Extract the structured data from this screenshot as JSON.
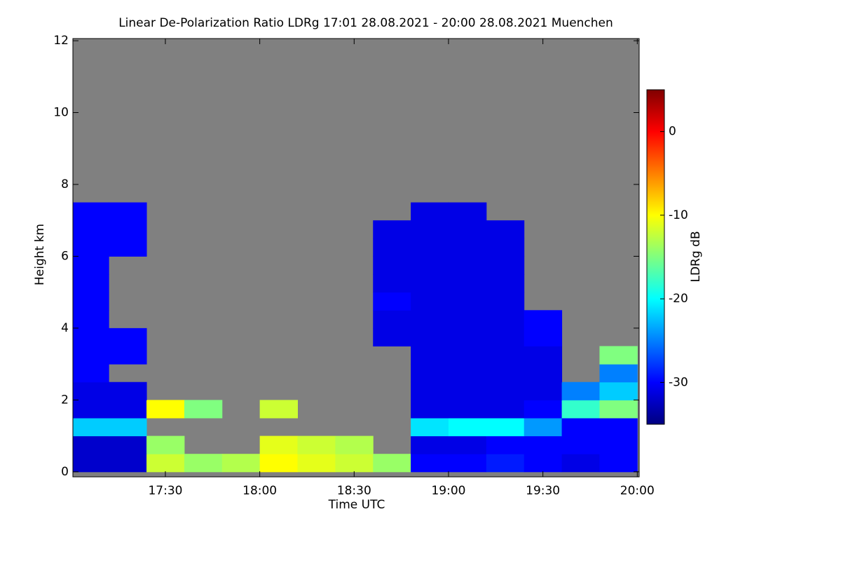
{
  "chart_data": {
    "type": "heatmap",
    "title": "Linear De-Polarization Ratio LDRg   17:01 28.08.2021 - 20:00 28.08.2021 Muenchen",
    "xlabel": "Time UTC",
    "ylabel": "Height km",
    "colorbar_label": "LDRg dB",
    "colormap": "jet",
    "nan_color": "#808080",
    "xlim": [
      17.01,
      20.01
    ],
    "xticks": [
      {
        "value": 17.5,
        "label": "17:30"
      },
      {
        "value": 18,
        "label": "18:00"
      },
      {
        "value": 18.5,
        "label": "18:30"
      },
      {
        "value": 19,
        "label": "19:00"
      },
      {
        "value": 19.5,
        "label": "19:30"
      },
      {
        "value": 20,
        "label": "20:00"
      }
    ],
    "ylim": [
      -0.14,
      12.06
    ],
    "yticks": [
      0,
      2,
      4,
      6,
      8,
      10,
      12
    ],
    "clim": [
      -35,
      5
    ],
    "cticks": [
      0,
      -10,
      -20,
      -30
    ],
    "x": [
      17.1,
      17.3,
      17.5,
      17.7,
      17.9,
      18.1,
      18.3,
      18.5,
      18.7,
      18.9,
      19.1,
      19.3,
      19.5,
      19.7,
      19.9
    ],
    "y": [
      0.25,
      0.75,
      1.25,
      1.75,
      2.25,
      2.75,
      3.25,
      3.75,
      4.25,
      4.75,
      5.25,
      5.75,
      6.25,
      6.75,
      7.25,
      7.75
    ],
    "z": [
      [
        -32,
        -32,
        -12,
        -14,
        -13,
        -10,
        -11,
        -12,
        -14,
        -30,
        -30,
        -29,
        -30,
        -31,
        -30
      ],
      [
        -32,
        -32,
        -14,
        null,
        null,
        -11,
        -12,
        -13,
        null,
        -31,
        -31,
        -30,
        -30,
        -30,
        -30
      ],
      [
        -22,
        -22,
        null,
        null,
        null,
        null,
        null,
        null,
        null,
        -21,
        -20,
        -20,
        -24,
        -30,
        -30
      ],
      [
        -31,
        -31,
        -10,
        -15,
        null,
        -12,
        null,
        null,
        null,
        -31,
        -31,
        -31,
        -30,
        -18,
        -15
      ],
      [
        -31,
        -31,
        null,
        null,
        null,
        null,
        null,
        null,
        null,
        -31,
        -31,
        -31,
        -31,
        -25,
        -22
      ],
      [
        -30,
        null,
        null,
        null,
        null,
        null,
        null,
        null,
        null,
        -31,
        -31,
        -31,
        -31,
        null,
        -25
      ],
      [
        -30,
        -30,
        null,
        null,
        null,
        null,
        null,
        null,
        null,
        -31,
        -31,
        -31,
        -31,
        null,
        -15
      ],
      [
        -30,
        -30,
        null,
        null,
        null,
        null,
        null,
        null,
        -31,
        -31,
        -31,
        -31,
        -30,
        null,
        null
      ],
      [
        -30,
        null,
        null,
        null,
        null,
        null,
        null,
        null,
        -31,
        -31,
        -31,
        -31,
        -30,
        null,
        null
      ],
      [
        -30,
        null,
        null,
        null,
        null,
        null,
        null,
        null,
        -30,
        -31,
        -31,
        -31,
        null,
        null,
        null
      ],
      [
        -30,
        null,
        null,
        null,
        null,
        null,
        null,
        null,
        -31,
        -31,
        -31,
        -31,
        null,
        null,
        null
      ],
      [
        -30,
        null,
        null,
        null,
        null,
        null,
        null,
        null,
        -31,
        -31,
        -31,
        -31,
        null,
        null,
        null
      ],
      [
        -30,
        -30,
        null,
        null,
        null,
        null,
        null,
        null,
        -31,
        -31,
        -31,
        -31,
        null,
        null,
        null
      ],
      [
        -30,
        -30,
        null,
        null,
        null,
        null,
        null,
        null,
        -31,
        -31,
        -31,
        -31,
        null,
        null,
        null
      ],
      [
        -30,
        -30,
        null,
        null,
        null,
        null,
        null,
        null,
        null,
        -31,
        -31,
        null,
        null,
        null,
        null
      ],
      [
        null,
        null,
        null,
        null,
        null,
        null,
        null,
        null,
        null,
        null,
        null,
        null,
        null,
        null,
        null
      ]
    ]
  }
}
